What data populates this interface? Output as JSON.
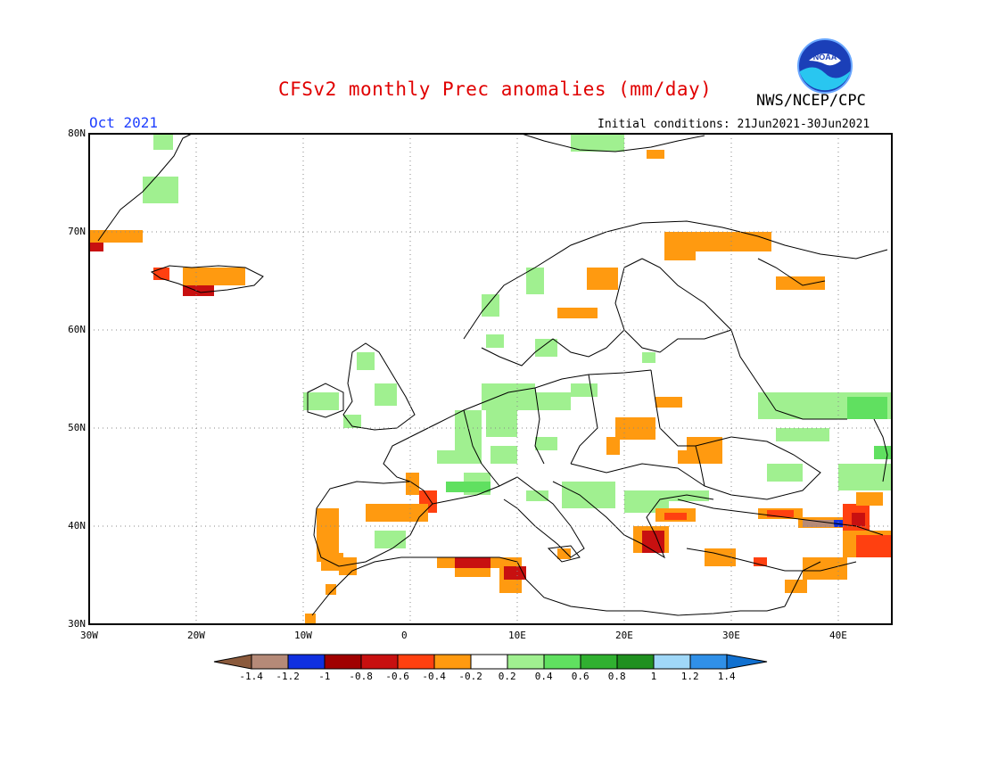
{
  "title": "CFSv2 monthly Prec anomalies (mm/day)",
  "organization": "NWS/NCEP/CPC",
  "logo_text": "NOAA",
  "valid_month": "Oct 2021",
  "initial_conditions": "Initial conditions: 21Jun2021-30Jun2021",
  "lat_labels": [
    "80N",
    "70N",
    "60N",
    "50N",
    "40N",
    "30N"
  ],
  "lon_labels": [
    "30W",
    "20W",
    "10W",
    "0",
    "10E",
    "20E",
    "30E",
    "40E"
  ],
  "colorbar": {
    "labels": [
      "-1.4",
      "-1.2",
      "-1",
      "-0.8",
      "-0.6",
      "-0.4",
      "-0.2",
      "0.2",
      "0.4",
      "0.6",
      "0.8",
      "1",
      "1.2",
      "1.4"
    ],
    "colors": [
      "#8b5a3c",
      "#b58a78",
      "#1030e0",
      "#a00000",
      "#c81010",
      "#ff4010",
      "#ff9a10",
      "#ffffff",
      "#a0f090",
      "#60e060",
      "#30b030",
      "#209020",
      "#a0d8f8",
      "#3090e8",
      "#1070d0"
    ]
  },
  "colors": {
    "title": "#e00000",
    "month": "#2040ff",
    "land_outline": "#000000"
  }
}
